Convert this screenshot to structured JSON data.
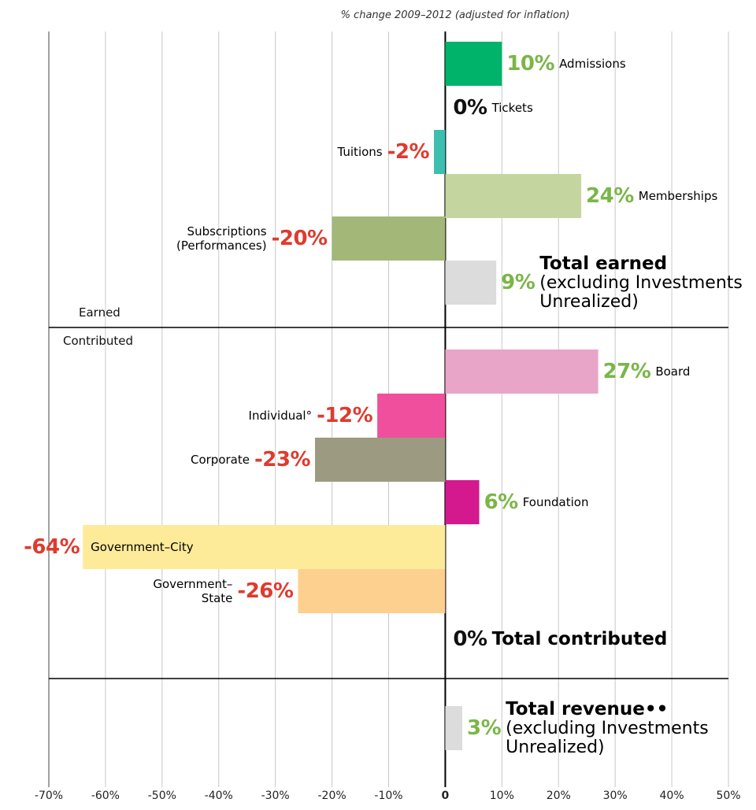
{
  "chart_data": {
    "type": "bar",
    "orientation": "horizontal",
    "title": "% change 2009–2012 (adjusted for inflation)",
    "sections": [
      "Earned",
      "Contributed"
    ],
    "categories": [
      "Admissions",
      "Tickets",
      "Tuitions",
      "Memberships",
      "Subscriptions (Performances)",
      "Total earned",
      "Board",
      "Individual°",
      "Corporate",
      "Foundation",
      "Government–City",
      "Government–State",
      "Total contributed",
      "Total revenue••"
    ],
    "values": [
      10,
      0,
      -2,
      24,
      -20,
      9,
      27,
      -12,
      -23,
      6,
      -64,
      -26,
      0,
      3
    ],
    "value_labels": [
      "10%",
      "0%",
      "-2%",
      "24%",
      "-20%",
      "9%",
      "27%",
      "-12%",
      "-23%",
      "6%",
      "-64%",
      "-26%",
      "0%",
      "3%"
    ],
    "notes": [
      null,
      null,
      null,
      null,
      null,
      "(excluding Investments Unrealized)",
      null,
      null,
      null,
      null,
      null,
      null,
      null,
      "(excluding Investments Unrealized)"
    ],
    "total": [
      false,
      false,
      false,
      false,
      false,
      true,
      false,
      false,
      false,
      false,
      false,
      false,
      true,
      true
    ],
    "colors": [
      "#00b36b",
      "#000000",
      "#3cbfae",
      "#c5d5a0",
      "#a3b878",
      "#dcdcdc",
      "#e8a5c8",
      "#ef4f9c",
      "#9c9a80",
      "#d4198f",
      "#fdeb9a",
      "#fdd08f",
      "#000000",
      "#dcdcdc"
    ],
    "positive_color": "#7ab648",
    "negative_color": "#e03a2e",
    "zero_color": "#111111",
    "xlim": [
      -70,
      50
    ],
    "xticks": [
      {
        "value": -70,
        "label": "-70%"
      },
      {
        "value": -60,
        "label": "-60%"
      },
      {
        "value": -50,
        "label": "-50%"
      },
      {
        "value": -40,
        "label": "-40%"
      },
      {
        "value": -30,
        "label": "-30%"
      },
      {
        "value": -20,
        "label": "-20%"
      },
      {
        "value": -10,
        "label": "-10%"
      },
      0,
      {
        "value": 10,
        "label": "10%"
      },
      {
        "value": 20,
        "label": "20%"
      },
      {
        "value": 30,
        "label": "30%"
      },
      {
        "value": 40,
        "label": "40%"
      },
      {
        "value": 50,
        "label": "50%"
      }
    ],
    "grid": true
  }
}
